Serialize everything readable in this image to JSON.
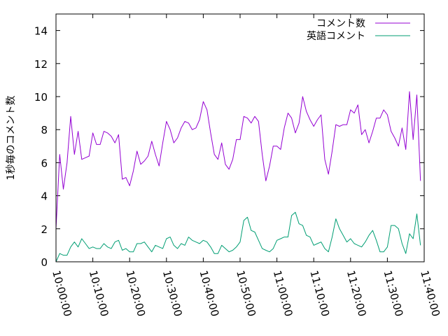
{
  "chart_data": {
    "type": "line",
    "ylabel": "1秒毎のコメント数",
    "xlabel": "",
    "ylim": [
      0,
      15
    ],
    "xlim": [
      "10:00:00",
      "11:40:00"
    ],
    "x_tick_labels": [
      "10:00:00",
      "10:10:00",
      "10:20:00",
      "10:30:00",
      "10:40:00",
      "10:50:00",
      "11:00:00",
      "11:10:00",
      "11:20:00",
      "11:30:00",
      "11:40:00"
    ],
    "y_tick_labels": [
      "0",
      "2",
      "4",
      "6",
      "8",
      "10",
      "12",
      "14"
    ],
    "grid": false,
    "legend_position": "top-right",
    "x_interval_seconds": 60,
    "series": [
      {
        "name": "コメント数",
        "color": "#9400d3",
        "values": [
          2.0,
          6.5,
          4.4,
          6.0,
          8.8,
          6.5,
          7.9,
          6.2,
          6.3,
          6.4,
          7.8,
          7.1,
          7.1,
          7.9,
          7.8,
          7.6,
          7.2,
          7.7,
          5.0,
          5.1,
          4.6,
          5.5,
          6.7,
          5.9,
          6.1,
          6.4,
          7.3,
          6.5,
          5.8,
          7.2,
          8.5,
          8.0,
          7.2,
          7.5,
          8.1,
          8.5,
          8.4,
          8.0,
          8.1,
          8.6,
          9.7,
          9.2,
          7.8,
          6.5,
          6.2,
          7.2,
          5.9,
          5.6,
          6.2,
          7.4,
          7.4,
          8.8,
          8.7,
          8.4,
          8.8,
          8.5,
          6.5,
          4.9,
          5.8,
          7.0,
          7.0,
          6.8,
          8.1,
          9.0,
          8.7,
          7.8,
          8.4,
          10.0,
          9.1,
          8.6,
          8.2,
          8.6,
          8.9,
          6.2,
          5.3,
          6.7,
          8.3,
          8.2,
          8.3,
          8.3,
          9.2,
          9.0,
          9.5,
          7.7,
          8.0,
          7.2,
          7.9,
          8.7,
          8.7,
          9.2,
          8.9,
          7.9,
          7.5,
          7.0,
          8.1,
          6.8,
          10.3,
          7.4,
          10.1,
          4.9
        ]
      },
      {
        "name": "英語コメント",
        "color": "#009e73",
        "values": [
          0.0,
          0.5,
          0.4,
          0.4,
          0.9,
          1.2,
          0.9,
          1.4,
          1.1,
          0.8,
          0.9,
          0.8,
          0.8,
          1.1,
          0.9,
          0.8,
          1.2,
          1.3,
          0.7,
          0.8,
          0.6,
          0.6,
          1.1,
          1.1,
          1.2,
          0.9,
          0.6,
          1.0,
          0.9,
          0.8,
          1.4,
          1.5,
          1.0,
          0.8,
          1.1,
          1.0,
          1.5,
          1.3,
          1.2,
          1.1,
          1.3,
          1.2,
          0.9,
          0.5,
          0.5,
          1.0,
          0.8,
          0.6,
          0.7,
          0.9,
          1.2,
          2.5,
          2.7,
          1.9,
          1.8,
          1.3,
          0.8,
          0.7,
          0.6,
          0.8,
          1.3,
          1.4,
          1.5,
          1.5,
          2.8,
          3.0,
          2.3,
          2.2,
          1.6,
          1.5,
          1.0,
          1.1,
          1.2,
          0.8,
          0.6,
          1.5,
          2.6,
          2.0,
          1.6,
          1.2,
          1.4,
          1.1,
          1.0,
          0.9,
          1.2,
          1.6,
          1.9,
          1.3,
          0.6,
          0.6,
          0.9,
          2.2,
          2.2,
          2.0,
          1.1,
          0.5,
          1.7,
          1.4,
          2.9,
          1.0
        ]
      }
    ]
  }
}
